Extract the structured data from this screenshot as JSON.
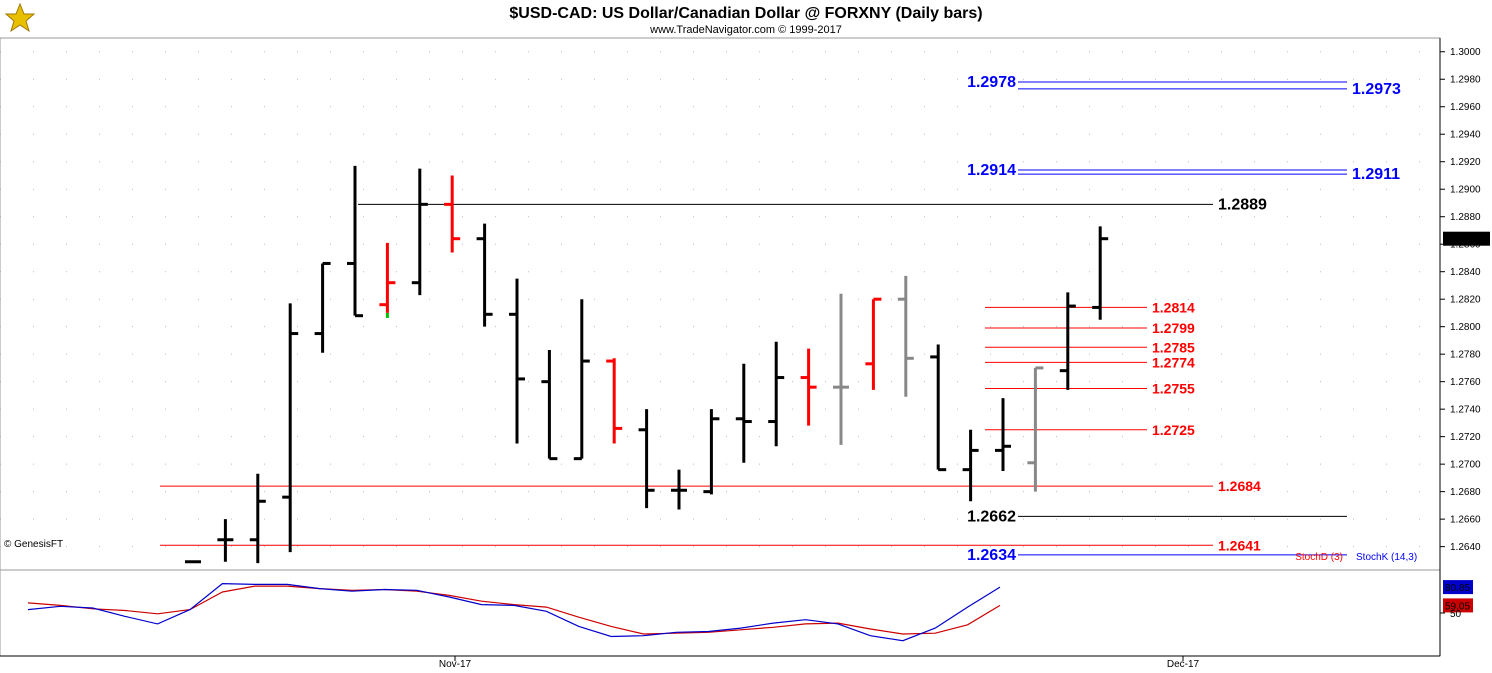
{
  "chart_data": {
    "type": "ohlc",
    "title": "$USD-CAD:  US Dollar/Canadian Dollar @ FORXNY  (Daily bars)",
    "subtitle": "www.TradeNavigator.com © 1999-2017",
    "watermark": "© GenesisFT",
    "x_ticks": [
      "Nov-17",
      "Dec-17"
    ],
    "y_ticks": [
      "1.3000",
      "1.2980",
      "1.2960",
      "1.2940",
      "1.2920",
      "1.2900",
      "1.2880",
      "1.2860",
      "1.2840",
      "1.2820",
      "1.2800",
      "1.2780",
      "1.2760",
      "1.2740",
      "1.2720",
      "1.2700",
      "1.2680",
      "1.2660",
      "1.2640"
    ],
    "ylim": [
      1.2623,
      1.301
    ],
    "last_price": "1.2864",
    "colors": {
      "up": "#000000",
      "down": "#ff0000",
      "neutral": "#888888",
      "green": "#00c000"
    },
    "bars": [
      {
        "o": 1.2629,
        "h": 1.2629,
        "l": 1.2629,
        "c": 1.2629,
        "color": "#000000"
      },
      {
        "o": 1.2645,
        "h": 1.266,
        "l": 1.2629,
        "c": 1.2645,
        "color": "#000000"
      },
      {
        "o": 1.2645,
        "h": 1.2693,
        "l": 1.2628,
        "c": 1.2673,
        "color": "#000000"
      },
      {
        "o": 1.2676,
        "h": 1.2817,
        "l": 1.2636,
        "c": 1.2795,
        "color": "#000000"
      },
      {
        "o": 1.2795,
        "h": 1.2846,
        "l": 1.2781,
        "c": 1.2846,
        "color": "#000000"
      },
      {
        "o": 1.2846,
        "h": 1.2917,
        "l": 1.2808,
        "c": 1.2808,
        "color": "#000000"
      },
      {
        "o": 1.2816,
        "h": 1.2861,
        "l": 1.281,
        "c": 1.2832,
        "color": "#ff0000",
        "tail": "#00c000"
      },
      {
        "o": 1.2832,
        "h": 1.2915,
        "l": 1.2823,
        "c": 1.2889,
        "color": "#000000"
      },
      {
        "o": 1.2889,
        "h": 1.291,
        "l": 1.2854,
        "c": 1.2864,
        "color": "#ff0000"
      },
      {
        "o": 1.2864,
        "h": 1.2875,
        "l": 1.28,
        "c": 1.2809,
        "color": "#000000"
      },
      {
        "o": 1.2809,
        "h": 1.2835,
        "l": 1.2715,
        "c": 1.2762,
        "color": "#000000"
      },
      {
        "o": 1.276,
        "h": 1.2783,
        "l": 1.2704,
        "c": 1.2704,
        "color": "#000000"
      },
      {
        "o": 1.2704,
        "h": 1.282,
        "l": 1.2704,
        "c": 1.2775,
        "color": "#000000"
      },
      {
        "o": 1.2775,
        "h": 1.2777,
        "l": 1.2715,
        "c": 1.2726,
        "color": "#ff0000"
      },
      {
        "o": 1.2725,
        "h": 1.274,
        "l": 1.2668,
        "c": 1.2681,
        "color": "#000000"
      },
      {
        "o": 1.2681,
        "h": 1.2696,
        "l": 1.2667,
        "c": 1.2681,
        "color": "#000000"
      },
      {
        "o": 1.268,
        "h": 1.274,
        "l": 1.2678,
        "c": 1.2733,
        "color": "#000000"
      },
      {
        "o": 1.2733,
        "h": 1.2773,
        "l": 1.2701,
        "c": 1.2731,
        "color": "#000000"
      },
      {
        "o": 1.2731,
        "h": 1.2789,
        "l": 1.2713,
        "c": 1.2763,
        "color": "#000000"
      },
      {
        "o": 1.2763,
        "h": 1.2784,
        "l": 1.2728,
        "c": 1.2756,
        "color": "#ff0000"
      },
      {
        "o": 1.2756,
        "h": 1.2824,
        "l": 1.2714,
        "c": 1.2756,
        "color": "#888888"
      },
      {
        "o": 1.2773,
        "h": 1.282,
        "l": 1.2754,
        "c": 1.282,
        "color": "#ff0000"
      },
      {
        "o": 1.282,
        "h": 1.2837,
        "l": 1.2749,
        "c": 1.2777,
        "color": "#888888"
      },
      {
        "o": 1.2778,
        "h": 1.2787,
        "l": 1.2696,
        "c": 1.2696,
        "color": "#000000"
      },
      {
        "o": 1.2696,
        "h": 1.2725,
        "l": 1.2673,
        "c": 1.271,
        "color": "#000000"
      },
      {
        "o": 1.271,
        "h": 1.2748,
        "l": 1.2695,
        "c": 1.2713,
        "color": "#000000"
      },
      {
        "o": 1.2701,
        "h": 1.277,
        "l": 1.268,
        "c": 1.277,
        "color": "#888888"
      },
      {
        "o": 1.2768,
        "h": 1.2825,
        "l": 1.2754,
        "c": 1.2815,
        "color": "#000000"
      },
      {
        "o": 1.2814,
        "h": 1.2873,
        "l": 1.2805,
        "c": 1.2864,
        "color": "#000000"
      }
    ],
    "levels": [
      {
        "value": 1.2978,
        "label": "1.2978",
        "color": "#0000ff",
        "label_side": "left"
      },
      {
        "value": 1.2973,
        "label": "1.2973",
        "color": "#0000ff",
        "label_side": "right"
      },
      {
        "value": 1.2914,
        "label": "1.2914",
        "color": "#0000ff",
        "label_side": "left"
      },
      {
        "value": 1.2911,
        "label": "1.2911",
        "color": "#0000ff",
        "label_side": "right"
      },
      {
        "value": 1.2889,
        "label": "1.2889",
        "color": "#000000",
        "label_side": "right"
      },
      {
        "value": 1.2814,
        "label": "1.2814",
        "color": "#ff0000",
        "label_side": "right"
      },
      {
        "value": 1.2799,
        "label": "1.2799",
        "color": "#ff0000",
        "label_side": "right"
      },
      {
        "value": 1.2785,
        "label": "1.2785",
        "color": "#ff0000",
        "label_side": "right"
      },
      {
        "value": 1.2774,
        "label": "1.2774",
        "color": "#ff0000",
        "label_side": "right"
      },
      {
        "value": 1.2755,
        "label": "1.2755",
        "color": "#ff0000",
        "label_side": "right"
      },
      {
        "value": 1.2725,
        "label": "1.2725",
        "color": "#ff0000",
        "label_side": "right"
      },
      {
        "value": 1.2684,
        "label": "1.2684",
        "color": "#ff0000",
        "label_side": "right"
      },
      {
        "value": 1.2662,
        "label": "1.2662",
        "color": "#000000",
        "label_side": "left"
      },
      {
        "value": 1.2641,
        "label": "1.2641",
        "color": "#ff0000",
        "label_side": "right"
      },
      {
        "value": 1.2634,
        "label": "1.2634",
        "color": "#0000ff",
        "label_side": "left"
      }
    ],
    "stochastic": {
      "label_d": "StochD (3)",
      "label_k": "StochK (14,3)",
      "value_k": "80.85",
      "value_d": "59.05",
      "tick_50": "50",
      "ylim": [
        0,
        100
      ],
      "k": [
        54,
        58,
        56,
        46,
        37,
        54,
        85,
        84,
        84,
        79,
        76,
        78,
        77,
        69,
        60,
        59,
        52,
        34,
        22,
        23,
        27,
        28,
        32,
        38,
        42,
        37,
        23,
        17,
        32,
        57,
        80.85
      ],
      "d": [
        62,
        59,
        55,
        53,
        49,
        54,
        75,
        82,
        82,
        79,
        77,
        78,
        76,
        71,
        64,
        60,
        57,
        45,
        34,
        25,
        26,
        27,
        30,
        33,
        37,
        38,
        31,
        25,
        26,
        36,
        59.05
      ]
    }
  }
}
